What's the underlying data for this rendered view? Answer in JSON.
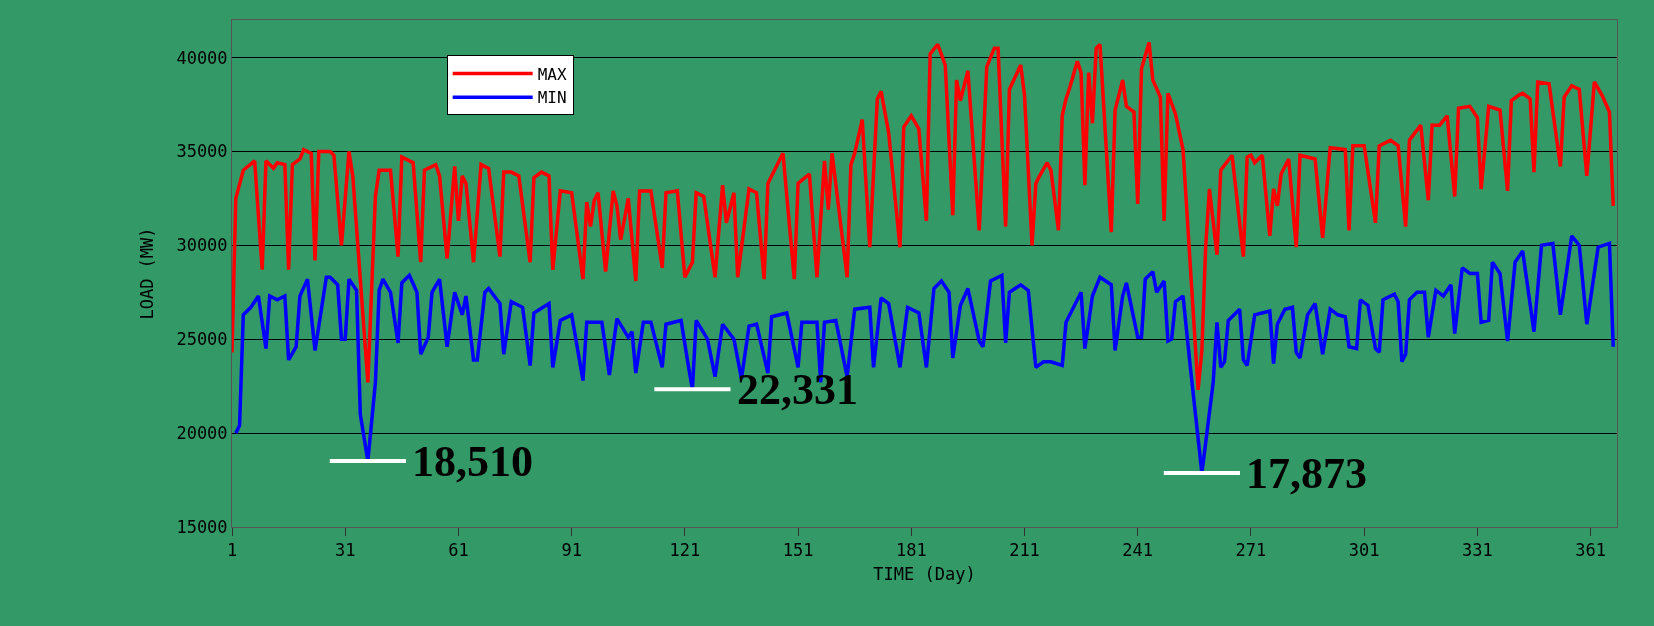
{
  "chart_data": {
    "type": "line",
    "xlabel": "TIME (Day)",
    "ylabel": "LOAD (MW)",
    "xlim": [
      1,
      368
    ],
    "xticks": [
      1,
      31,
      61,
      91,
      121,
      151,
      181,
      211,
      241,
      271,
      301,
      331,
      361
    ],
    "ylim": [
      15000,
      42000
    ],
    "yticks": [
      15000,
      20000,
      25000,
      30000,
      35000,
      40000
    ],
    "grid": "y",
    "legend": "top left",
    "line_style": "solid",
    "marker": "none",
    "annotations": [
      {
        "text": "18,510",
        "x": 37,
        "y": 18510
      },
      {
        "text": "22,331",
        "x": 123,
        "y": 22331
      },
      {
        "text": "17,873",
        "x": 258,
        "y": 17873
      }
    ],
    "series": [
      {
        "name": "MAX",
        "color": "#ff0000",
        "x": [
          1,
          2,
          4,
          7,
          9,
          10,
          12,
          13,
          15,
          16,
          17,
          19,
          20,
          22,
          23,
          24,
          27,
          28,
          30,
          32,
          33,
          37,
          39,
          40,
          43,
          45,
          46,
          49,
          51,
          52,
          55,
          56,
          58,
          60,
          61,
          62,
          63,
          65,
          67,
          69,
          72,
          73,
          75,
          77,
          80,
          81,
          83,
          85,
          86,
          88,
          91,
          94,
          95,
          96,
          97,
          98,
          100,
          102,
          103,
          104,
          106,
          108,
          109,
          112,
          115,
          116,
          119,
          121,
          123,
          124,
          126,
          129,
          131,
          132,
          134,
          135,
          138,
          140,
          142,
          143,
          147,
          150,
          151,
          154,
          156,
          158,
          159,
          160,
          164,
          165,
          166,
          168,
          170,
          172,
          173,
          175,
          178,
          179,
          181,
          183,
          185,
          186,
          188,
          190,
          192,
          193,
          194,
          196,
          199,
          201,
          203,
          204,
          206,
          207,
          210,
          211,
          213,
          214,
          215,
          217,
          218,
          220,
          221,
          222,
          223,
          225,
          226,
          227,
          228,
          229,
          230,
          231,
          234,
          235,
          237,
          238,
          240,
          241,
          242,
          244,
          245,
          247,
          248,
          249,
          251,
          253,
          257,
          258,
          259,
          260,
          262,
          263,
          266,
          267,
          269,
          270,
          271,
          272,
          274,
          276,
          277,
          278,
          279,
          281,
          283,
          284,
          288,
          290,
          292,
          296,
          297,
          298,
          301,
          304,
          305,
          308,
          310,
          312,
          313,
          316,
          318,
          319,
          321,
          323,
          325,
          326,
          329,
          331,
          332,
          334,
          337,
          339,
          340,
          342,
          343,
          345,
          346,
          347,
          350,
          353,
          354,
          356,
          358,
          360,
          362,
          364,
          366,
          367
        ],
        "values": [
          24300,
          32500,
          34000,
          34500,
          28700,
          34500,
          34100,
          34400,
          34300,
          28700,
          34300,
          34600,
          35100,
          34900,
          29200,
          35000,
          35000,
          34800,
          30000,
          35000,
          33700,
          22700,
          32600,
          34000,
          34000,
          29400,
          34700,
          34400,
          29100,
          34000,
          34300,
          33700,
          29300,
          34200,
          31300,
          33700,
          33300,
          29100,
          34300,
          34100,
          29400,
          33900,
          33900,
          33700,
          29100,
          33600,
          33900,
          33700,
          28700,
          32900,
          32800,
          28200,
          32300,
          31000,
          32400,
          32800,
          28600,
          32900,
          32100,
          30300,
          32500,
          28100,
          32900,
          32900,
          28800,
          32800,
          32900,
          28300,
          29100,
          32800,
          32600,
          28300,
          33200,
          31200,
          32800,
          28300,
          33000,
          32800,
          28200,
          33300,
          34900,
          28200,
          33300,
          33800,
          28300,
          34500,
          31900,
          34900,
          28300,
          34300,
          34900,
          36700,
          29900,
          37800,
          38200,
          36000,
          29900,
          36300,
          36900,
          36200,
          31300,
          40200,
          40700,
          39600,
          31600,
          38800,
          37700,
          39300,
          30800,
          39500,
          40500,
          40500,
          31000,
          38300,
          39600,
          38000,
          30000,
          33300,
          33700,
          34400,
          34000,
          30800,
          36900,
          37800,
          38400,
          39800,
          39200,
          33200,
          39200,
          36500,
          40500,
          40700,
          30700,
          37200,
          38800,
          37400,
          37100,
          32200,
          39400,
          40800,
          38800,
          37900,
          31300,
          38100,
          37000,
          35100,
          22300,
          24400,
          29900,
          33000,
          29500,
          34000,
          34800,
          33000,
          29400,
          34700,
          34800,
          34400,
          34800,
          30500,
          33000,
          32100,
          33800,
          34600,
          29900,
          34800,
          34600,
          30400,
          35200,
          35100,
          30800,
          35300,
          35300,
          31200,
          35300,
          35600,
          35300,
          31000,
          35600,
          36400,
          32400,
          36400,
          36400,
          36900,
          32600,
          37300,
          37400,
          36800,
          33000,
          37400,
          37200,
          32900,
          37700,
          38000,
          38100,
          37800,
          33900,
          38700,
          38600,
          34200,
          37900,
          38500,
          38300,
          33700,
          38700,
          38000,
          37100,
          32100
        ]
      },
      {
        "name": "MIN",
        "color": "#0000ff",
        "x": [
          2,
          3,
          4,
          6,
          8,
          10,
          11,
          13,
          15,
          16,
          18,
          19,
          21,
          23,
          26,
          27,
          29,
          30,
          31,
          32,
          34,
          35,
          37,
          39,
          40,
          41,
          43,
          45,
          46,
          48,
          50,
          51,
          53,
          54,
          56,
          58,
          60,
          62,
          63,
          65,
          66,
          68,
          69,
          72,
          73,
          75,
          78,
          80,
          81,
          85,
          86,
          88,
          91,
          94,
          95,
          99,
          101,
          103,
          106,
          107,
          108,
          110,
          112,
          115,
          116,
          120,
          122,
          123,
          124,
          127,
          129,
          131,
          134,
          136,
          138,
          140,
          143,
          144,
          148,
          151,
          152,
          156,
          157,
          158,
          161,
          164,
          166,
          170,
          171,
          173,
          175,
          178,
          180,
          183,
          185,
          187,
          189,
          191,
          192,
          194,
          196,
          199,
          200,
          202,
          205,
          206,
          207,
          210,
          212,
          214,
          216,
          218,
          221,
          222,
          224,
          226,
          227,
          229,
          231,
          234,
          235,
          237,
          238,
          241,
          242,
          243,
          245,
          246,
          248,
          249,
          250,
          251,
          253,
          255,
          258,
          261,
          262,
          263,
          264,
          265,
          268,
          269,
          270,
          272,
          276,
          277,
          278,
          280,
          282,
          283,
          284,
          286,
          288,
          290,
          292,
          294,
          296,
          297,
          299,
          300,
          302,
          304,
          305,
          306,
          309,
          310,
          311,
          312,
          313,
          315,
          317,
          318,
          320,
          322,
          324,
          325,
          327,
          329,
          331,
          332,
          334,
          335,
          337,
          339,
          341,
          343,
          346,
          348,
          351,
          353,
          356,
          358,
          360,
          363,
          366,
          367
        ],
        "values": [
          20000,
          20400,
          26300,
          26700,
          27300,
          24500,
          27300,
          27100,
          27300,
          23900,
          24600,
          27300,
          28200,
          24400,
          28300,
          28300,
          27900,
          25000,
          25000,
          28200,
          27600,
          21000,
          18510,
          22700,
          27600,
          28200,
          27500,
          24800,
          28000,
          28400,
          27500,
          24200,
          25100,
          27500,
          28200,
          24600,
          27500,
          26300,
          27300,
          23900,
          23900,
          27500,
          27700,
          26900,
          24200,
          27000,
          26700,
          23600,
          26400,
          26900,
          23500,
          26000,
          26300,
          22800,
          25900,
          25900,
          23100,
          26100,
          25100,
          25400,
          23200,
          25900,
          25900,
          23500,
          25800,
          26000,
          23500,
          22331,
          26000,
          25000,
          23000,
          25800,
          25000,
          22900,
          25700,
          25800,
          23200,
          26200,
          26400,
          23500,
          25900,
          25900,
          22700,
          25900,
          26000,
          23000,
          26600,
          26700,
          23500,
          27200,
          26900,
          23500,
          26700,
          26400,
          23500,
          27700,
          28100,
          27500,
          24000,
          26800,
          27700,
          24900,
          24600,
          28100,
          28400,
          24800,
          27500,
          27900,
          27600,
          23500,
          23800,
          23800,
          23600,
          25900,
          26700,
          27500,
          24500,
          27300,
          28300,
          27900,
          24400,
          27300,
          28000,
          25100,
          25100,
          28200,
          28600,
          27500,
          28100,
          24900,
          25000,
          27000,
          27300,
          23400,
          17873,
          22700,
          25900,
          23500,
          23800,
          26000,
          26600,
          23900,
          23600,
          26300,
          26500,
          23700,
          25800,
          26600,
          26700,
          24300,
          24000,
          26300,
          26900,
          24200,
          26600,
          26300,
          26200,
          24600,
          24500,
          27100,
          26800,
          24500,
          24300,
          27100,
          27400,
          27000,
          23800,
          24200,
          27100,
          27500,
          27500,
          25100,
          27600,
          27300,
          27900,
          25300,
          28800,
          28500,
          28500,
          25900,
          26000,
          29100,
          28500,
          24900,
          29100,
          29700,
          25400,
          30000,
          30100,
          26300,
          30500,
          30000,
          25800,
          29900,
          30100,
          24600
        ]
      }
    ]
  }
}
